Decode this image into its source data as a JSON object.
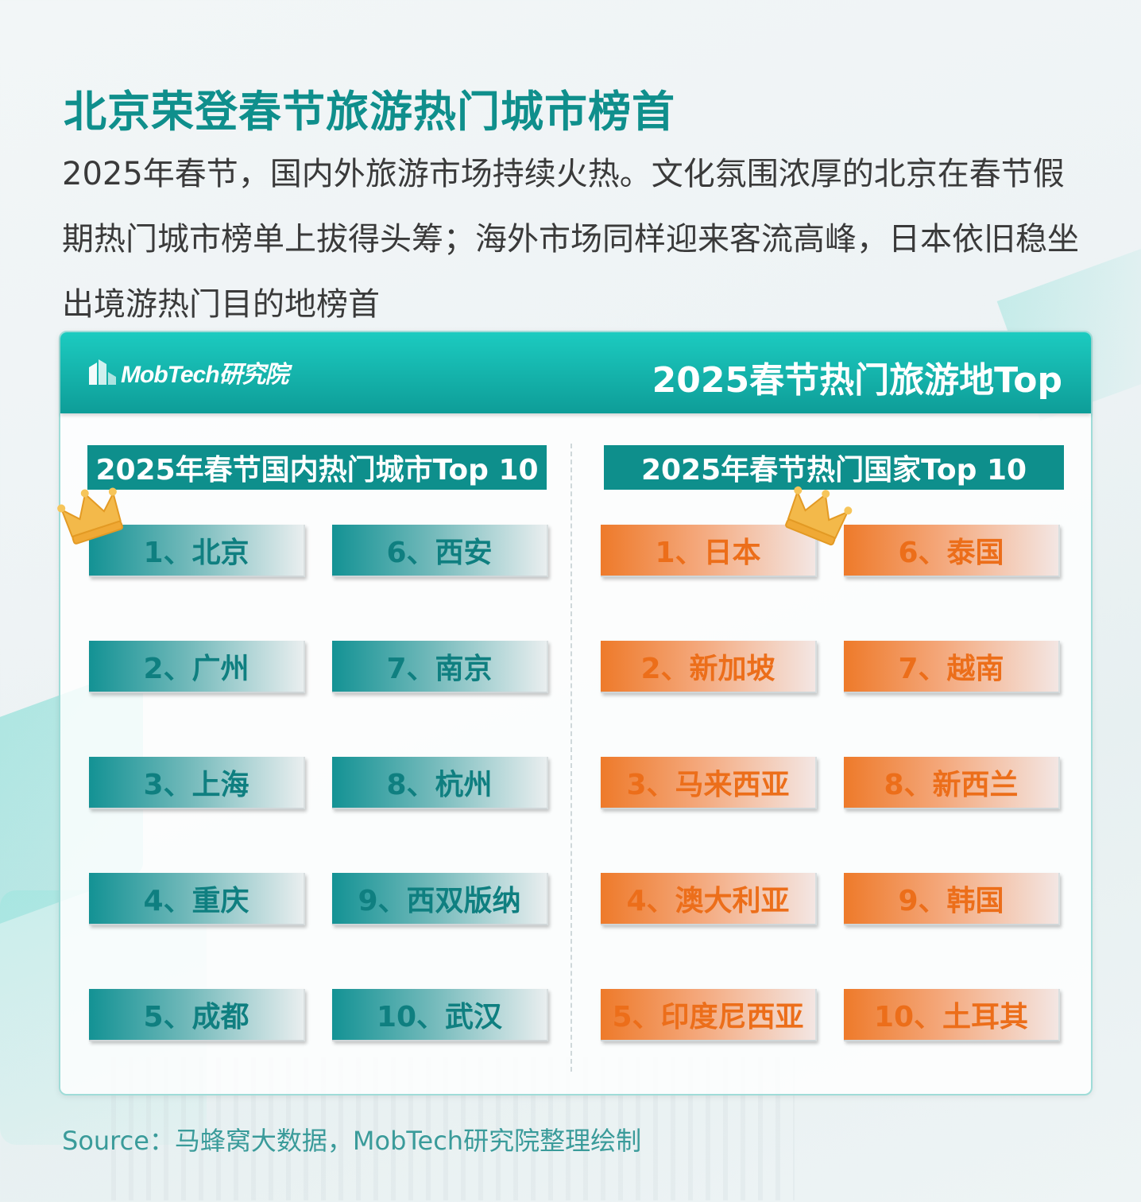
{
  "title": "北京荣登春节旅游热门城市榜首",
  "description": "2025年春节，国内外旅游市场持续火热。文化氛围浓厚的北京在春节假期热门城市榜单上拔得头筹；海外市场同样迎来客流高峰，日本依旧稳坐出境游热门目的地榜首",
  "panel": {
    "logo_text": "MobTech研究院",
    "title": "2025春节热门旅游地Top"
  },
  "domestic": {
    "heading": "2025年春节国内热门城市Top 10",
    "items": [
      "1、北京",
      "2、广州",
      "3、上海",
      "4、重庆",
      "5、成都",
      "6、西安",
      "7、南京",
      "8、杭州",
      "9、西双版纳",
      "10、武汉"
    ]
  },
  "international": {
    "heading": "2025年春节热门国家Top 10",
    "items": [
      "1、日本",
      "2、新加坡",
      "3、马来西亚",
      "4、澳大利亚",
      "5、印度尼西亚",
      "6、泰国",
      "7、越南",
      "8、新西兰",
      "9、韩国",
      "10、土耳其"
    ]
  },
  "source": "Source：马蜂窝大数据，MobTech研究院整理绘制",
  "colors": {
    "title": "#0f8f8c",
    "header_teal": "#0e9d98",
    "city_tile": "#139294",
    "country_tile": "#ee7a2a",
    "crown": "#f3b94a"
  },
  "icons": [
    "crown-icon",
    "mobtech-logo-icon"
  ]
}
